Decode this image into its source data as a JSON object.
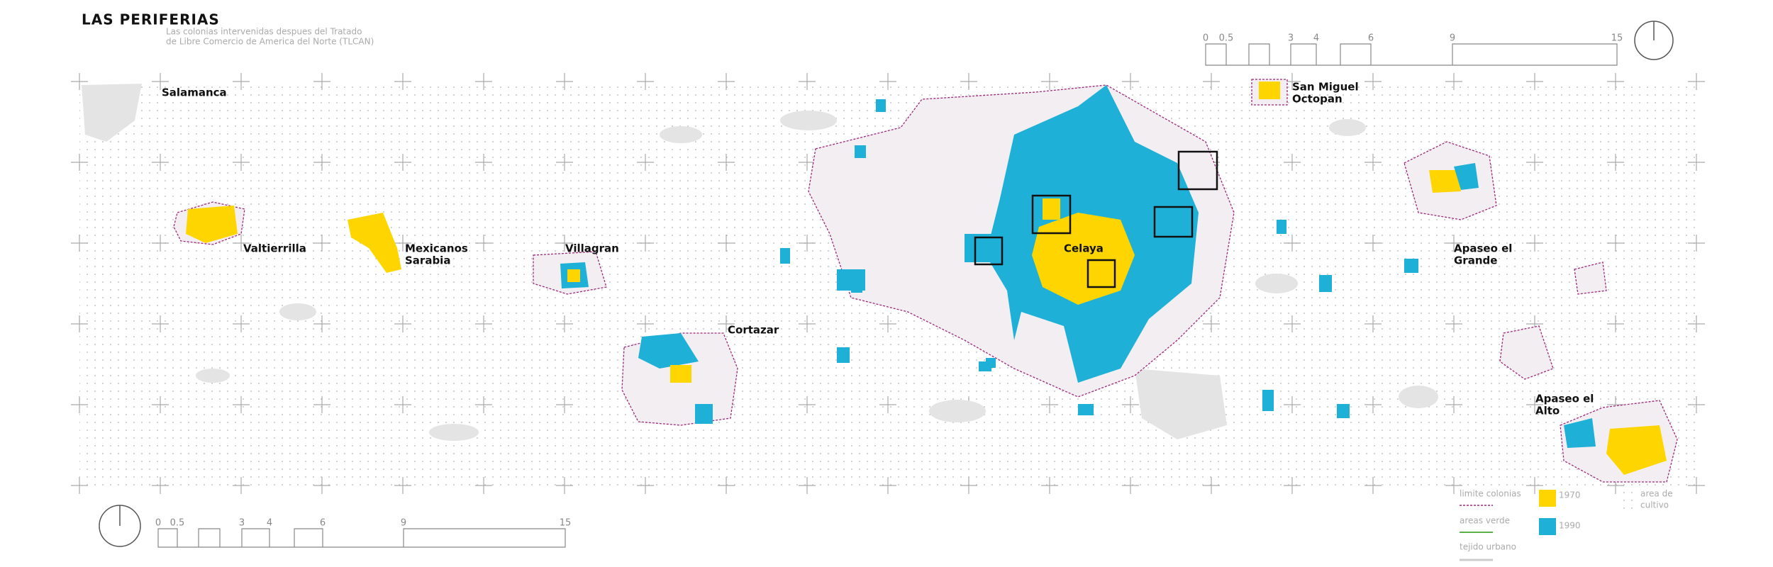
{
  "header": {
    "title": "LAS PERIFERIAS",
    "subtitle": [
      "Las colonias intervenidas despues del Tratado",
      "de Libre Comercio de America del Norte (TLCAN)"
    ]
  },
  "scale_top": [
    "0",
    "0.5",
    "3",
    "4",
    "6",
    "9",
    "15"
  ],
  "scale_bottom": [
    "0",
    "0.5",
    "3",
    "4",
    "6",
    "9",
    "15"
  ],
  "places": [
    [
      "Salamanca"
    ],
    [
      "Valtierrilla"
    ],
    [
      "Mexicanos",
      "Sarabia"
    ],
    [
      "Villagran"
    ],
    [
      "Cortazar"
    ],
    [
      "Celaya"
    ],
    [
      "San Miguel",
      "Octopan"
    ],
    [
      "Apaseo el",
      "Grande"
    ],
    [
      "Apaseo el",
      "Alto"
    ]
  ],
  "legend": {
    "lines": [
      "limite colonias",
      "areas verde",
      "tejido urbano"
    ],
    "years": [
      "1970",
      "1990"
    ],
    "cultivo": [
      "area de",
      "cultivo"
    ]
  }
}
